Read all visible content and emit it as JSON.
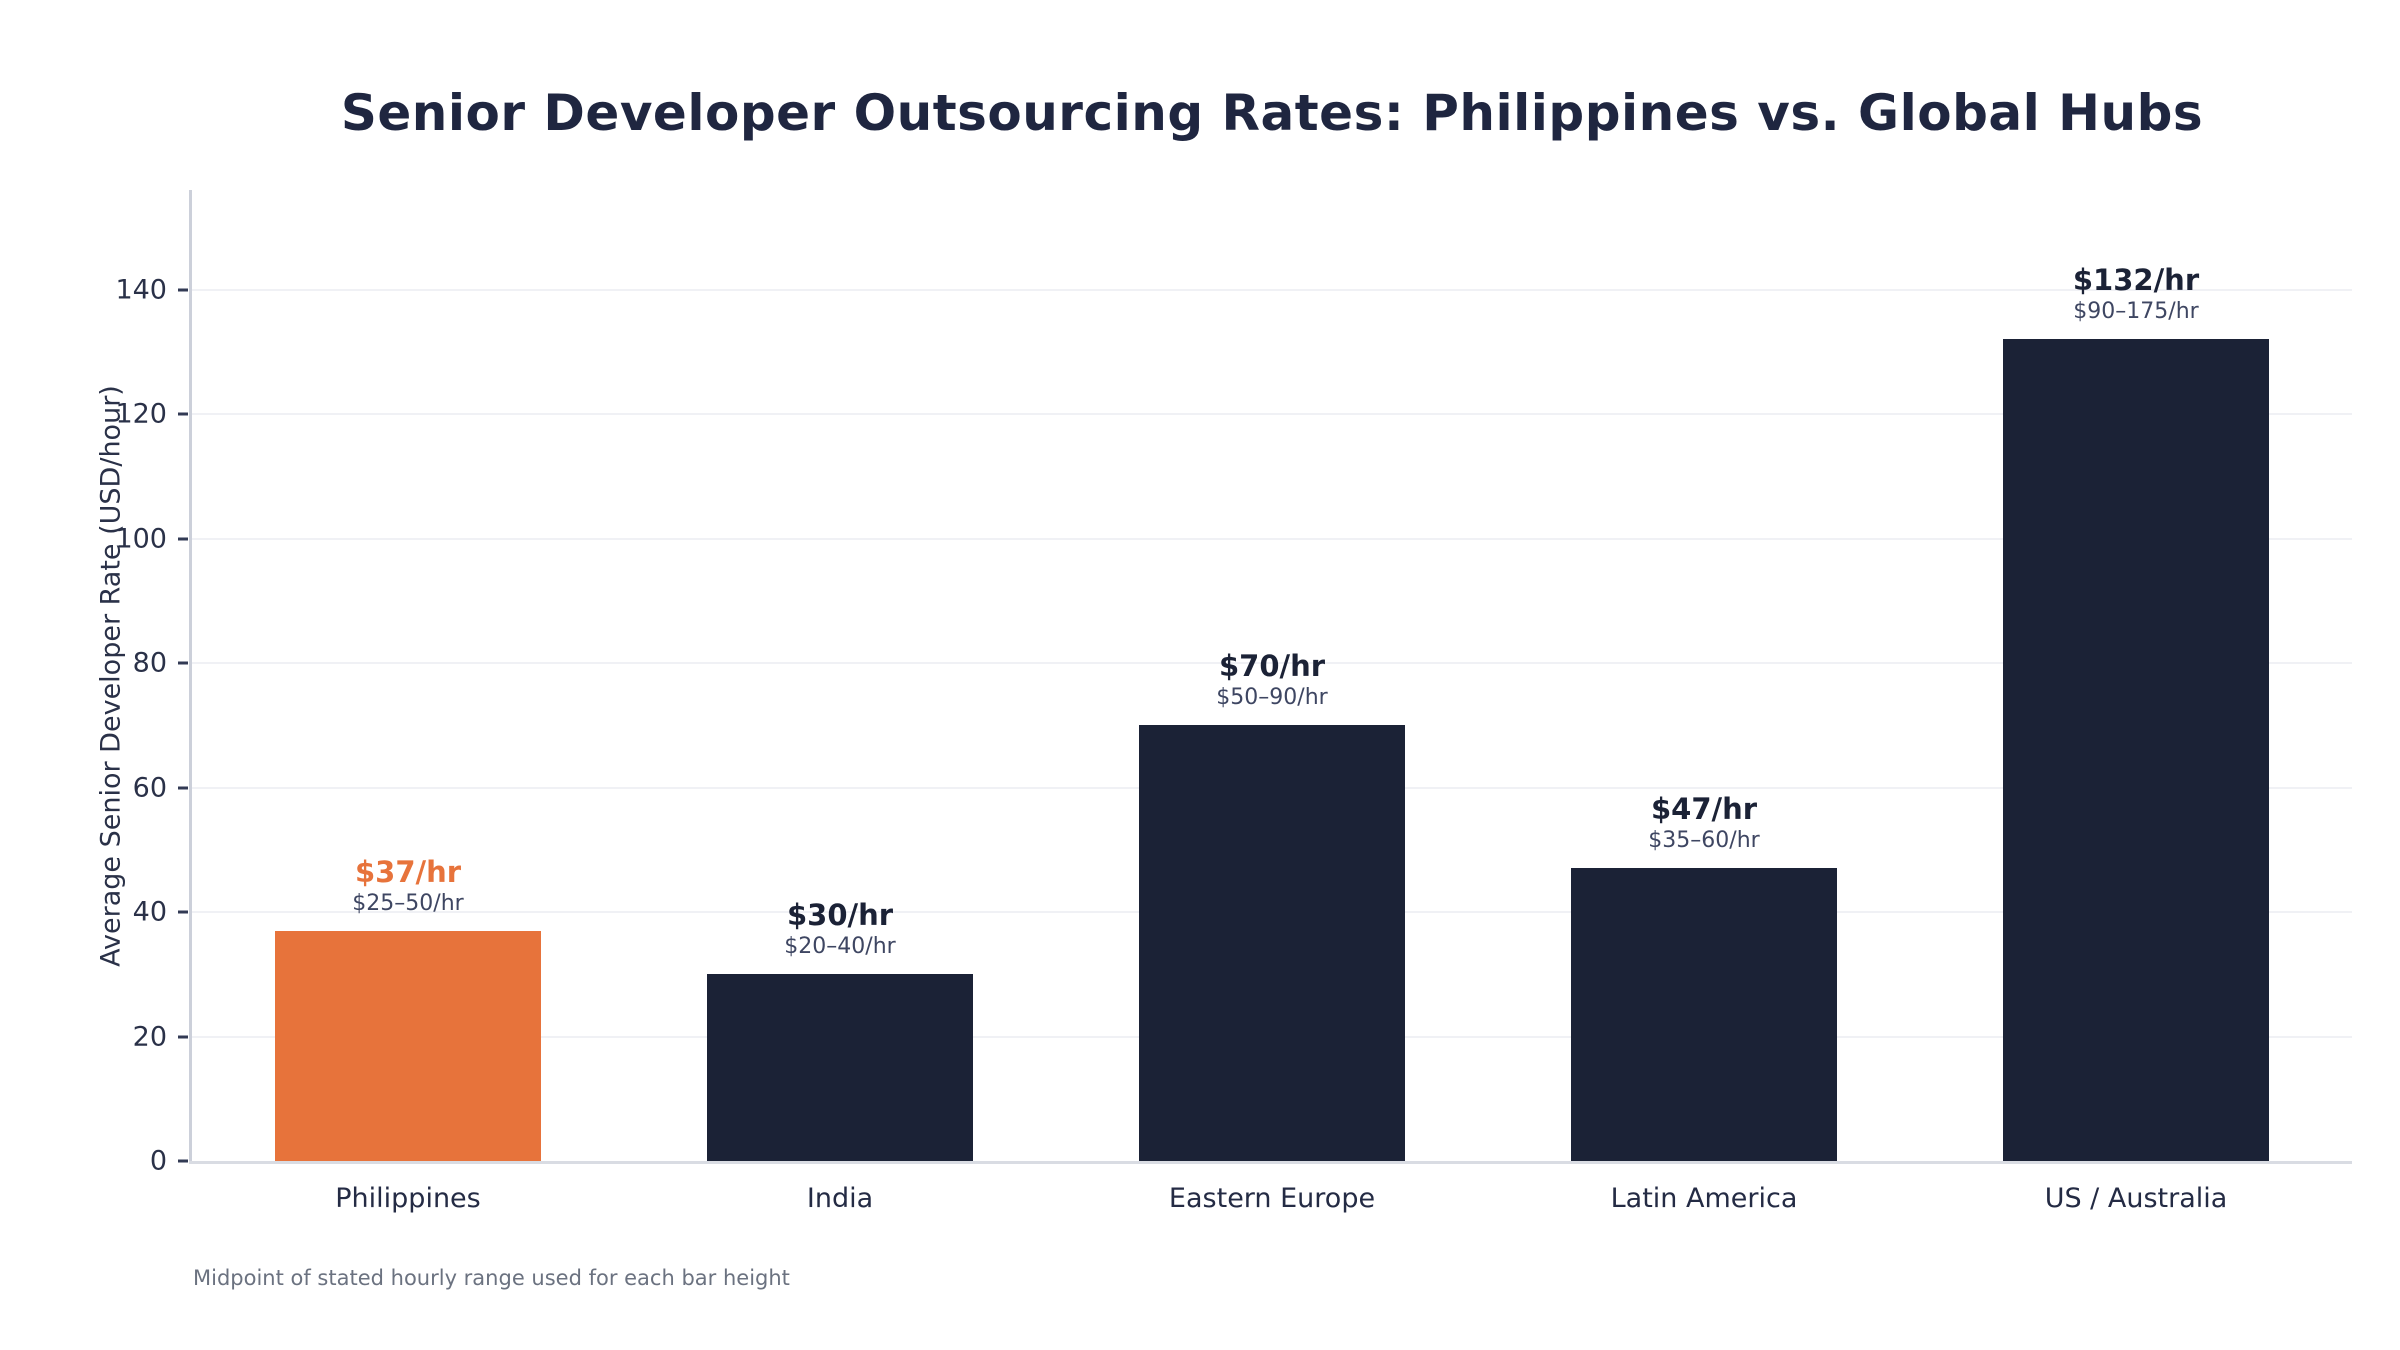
{
  "chart_data": {
    "type": "bar",
    "title": "Senior Developer Outsourcing Rates: Philippines vs. Global Hubs",
    "xlabel": "",
    "ylabel": "Average Senior Developer Rate (USD/hour)",
    "note": "Midpoint of stated hourly range used for each bar height",
    "categories": [
      "Philippines",
      "India",
      "Eastern Europe",
      "Latin America",
      "US / Australia"
    ],
    "values": [
      37,
      30,
      70,
      47,
      132
    ],
    "value_labels": [
      "$37/hr",
      "$30/hr",
      "$70/hr",
      "$47/hr",
      "$132/hr"
    ],
    "range_labels": [
      "$25–50/hr",
      "$20–40/hr",
      "$50–90/hr",
      "$35–60/hr",
      "$90–175/hr"
    ],
    "bar_colors": [
      "#e7733b",
      "#1b2236",
      "#1b2236",
      "#1b2236",
      "#1b2236"
    ],
    "value_label_colors": [
      "#e7733b",
      "#1b2236",
      "#1b2236",
      "#1b2236",
      "#1b2236"
    ],
    "highlight_category": "Philippines",
    "ylim": [
      0,
      156
    ],
    "yticks": [
      0,
      20,
      40,
      60,
      80,
      100,
      120,
      140
    ],
    "grid": "horizontal",
    "legend": "none",
    "colors": {
      "accent_orange": "#e7733b",
      "navy": "#1b2236",
      "title_text": "#1f2640",
      "tick_text": "#2a3148",
      "range_text": "#3e4662",
      "footnote_text": "#6b7280",
      "gridline": "#f0f1f5",
      "axis_line": "#d9dce3",
      "background": "#ffffff"
    }
  }
}
